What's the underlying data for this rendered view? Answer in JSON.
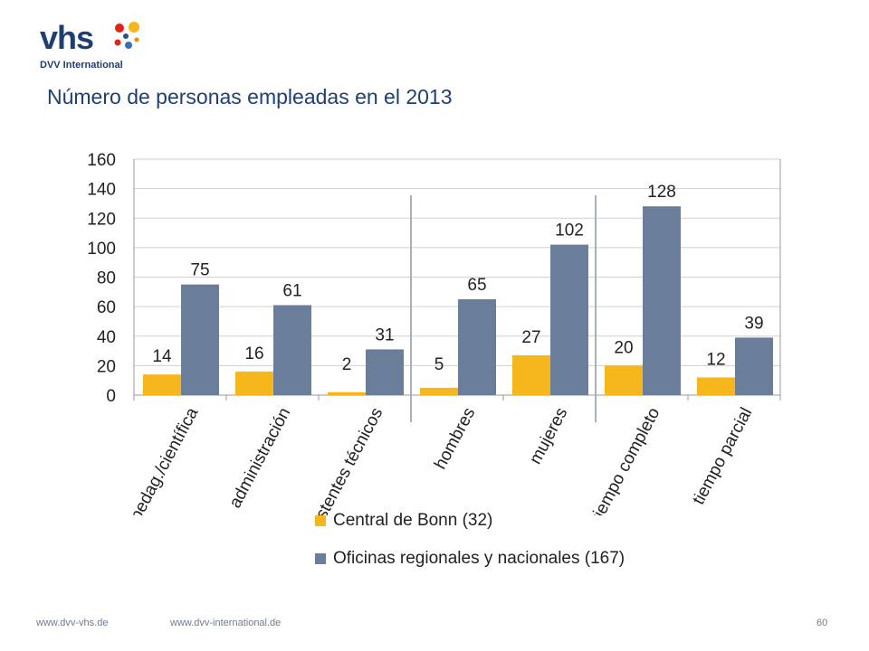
{
  "logo": {
    "wordmark": "vhs",
    "subtitle": "DVV International"
  },
  "title": "Número de personas empleadas en el 2013",
  "colors": {
    "bonn": "#f5b71b",
    "regional": "#6a7e9a",
    "grid": "#cfcfcf",
    "axis": "#9a9a9a",
    "separator": "#a8b0c0"
  },
  "chart_data": {
    "type": "bar",
    "categories": [
      "área pedag./científica",
      "administración",
      "asistentes técnicos",
      "hombres",
      "mujeres",
      "tiempo completo",
      "tiempo parcial"
    ],
    "series": [
      {
        "name": "Central de Bonn (32)",
        "values": [
          14,
          16,
          2,
          5,
          27,
          20,
          12
        ]
      },
      {
        "name": "Oficinas regionales y nacionales (167)",
        "values": [
          75,
          61,
          31,
          65,
          102,
          128,
          39
        ]
      }
    ],
    "ylim": [
      0,
      160
    ],
    "yticks": [
      0,
      20,
      40,
      60,
      80,
      100,
      120,
      140,
      160
    ],
    "grid": true,
    "legend": "bottom",
    "separators_after": [
      2,
      4
    ]
  },
  "footer": {
    "left1": "www.dvv-vhs.de",
    "left2": "www.dvv-international.de",
    "page": "60"
  }
}
